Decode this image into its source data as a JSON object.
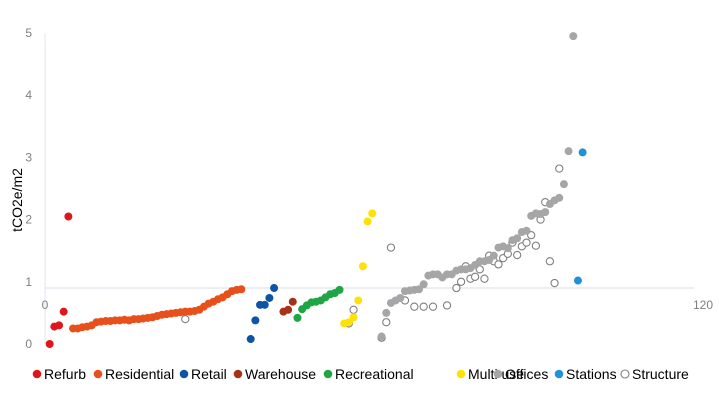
{
  "chart_data": {
    "type": "scatter",
    "title": "",
    "xlabel": "",
    "ylabel": "tCO2e/m2",
    "xlim": [
      0,
      120
    ],
    "ylim": [
      0,
      5
    ],
    "x_axis_crosses_y_at": 0.9,
    "y_ticks": [
      "0",
      "1",
      "2",
      "3",
      "4",
      "5"
    ],
    "x_tick_labels": [
      "0",
      "120"
    ],
    "grid": false,
    "legend_position": "bottom",
    "series": [
      {
        "name": "Refurb",
        "color": "#e0161d",
        "filled": true,
        "points": [
          [
            1,
            0
          ],
          [
            2,
            0.28
          ],
          [
            3,
            0.3
          ],
          [
            4,
            0.52
          ],
          [
            5,
            2.05
          ]
        ]
      },
      {
        "name": "Residential",
        "color": "#e8501b",
        "filled": true,
        "points": [
          [
            6,
            0.25
          ],
          [
            7,
            0.25
          ],
          [
            8,
            0.27
          ],
          [
            9,
            0.28
          ],
          [
            10,
            0.3
          ],
          [
            11,
            0.35
          ],
          [
            12,
            0.36
          ],
          [
            13,
            0.37
          ],
          [
            14,
            0.37
          ],
          [
            15,
            0.38
          ],
          [
            16,
            0.38
          ],
          [
            17,
            0.39
          ],
          [
            18,
            0.38
          ],
          [
            19,
            0.4
          ],
          [
            20,
            0.4
          ],
          [
            21,
            0.41
          ],
          [
            22,
            0.42
          ],
          [
            23,
            0.43
          ],
          [
            24,
            0.45
          ],
          [
            25,
            0.47
          ],
          [
            26,
            0.48
          ],
          [
            27,
            0.49
          ],
          [
            28,
            0.5
          ],
          [
            29,
            0.51
          ],
          [
            30,
            0.52
          ],
          [
            31,
            0.52
          ],
          [
            32,
            0.53
          ],
          [
            33,
            0.55
          ],
          [
            34,
            0.6
          ],
          [
            35,
            0.65
          ],
          [
            36,
            0.68
          ],
          [
            37,
            0.72
          ],
          [
            38,
            0.75
          ],
          [
            39,
            0.8
          ],
          [
            40,
            0.85
          ],
          [
            41,
            0.87
          ],
          [
            42,
            0.88
          ]
        ]
      },
      {
        "name": "Retail",
        "color": "#0d54a5",
        "filled": true,
        "points": [
          [
            44,
            0.08
          ],
          [
            45,
            0.38
          ],
          [
            46,
            0.63
          ],
          [
            47,
            0.63
          ],
          [
            48,
            0.74
          ],
          [
            49,
            0.9
          ]
        ]
      },
      {
        "name": "Warehouse",
        "color": "#a83218",
        "filled": true,
        "points": [
          [
            51,
            0.52
          ],
          [
            52,
            0.55
          ],
          [
            53,
            0.68
          ]
        ]
      },
      {
        "name": "Recreational",
        "color": "#1ea544",
        "filled": true,
        "points": [
          [
            54,
            0.42
          ],
          [
            55,
            0.56
          ],
          [
            56,
            0.62
          ],
          [
            57,
            0.67
          ],
          [
            58,
            0.68
          ],
          [
            59,
            0.7
          ],
          [
            60,
            0.75
          ],
          [
            61,
            0.8
          ],
          [
            62,
            0.82
          ],
          [
            63,
            0.87
          ]
        ]
      },
      {
        "name": "Multi use",
        "color": "#ffe10a",
        "filled": true,
        "points": [
          [
            64,
            0.33
          ],
          [
            65,
            0.35
          ],
          [
            66,
            0.43
          ],
          [
            67,
            0.7
          ],
          [
            68,
            1.25
          ],
          [
            69,
            1.97
          ],
          [
            70,
            2.1
          ]
        ]
      },
      {
        "name": "Offices",
        "color": "#a6a6a6",
        "filled": true,
        "points": [
          [
            72,
            0.12
          ],
          [
            73,
            0.5
          ],
          [
            74,
            0.66
          ],
          [
            75,
            0.7
          ],
          [
            76,
            0.74
          ],
          [
            77,
            0.85
          ],
          [
            78,
            0.86
          ],
          [
            79,
            0.87
          ],
          [
            80,
            0.88
          ],
          [
            81,
            0.96
          ],
          [
            82,
            1.1
          ],
          [
            83,
            1.12
          ],
          [
            84,
            1.12
          ],
          [
            85,
            1.07
          ],
          [
            86,
            1.12
          ],
          [
            87,
            1.12
          ],
          [
            88,
            1.18
          ],
          [
            89,
            1.2
          ],
          [
            90,
            1.2
          ],
          [
            91,
            1.22
          ],
          [
            92,
            1.27
          ],
          [
            93,
            1.33
          ],
          [
            94,
            1.33
          ],
          [
            95,
            1.35
          ],
          [
            96,
            1.42
          ],
          [
            97,
            1.55
          ],
          [
            98,
            1.57
          ],
          [
            99,
            1.54
          ],
          [
            100,
            1.67
          ],
          [
            101,
            1.7
          ],
          [
            102,
            1.8
          ],
          [
            103,
            1.82
          ],
          [
            104,
            2.06
          ],
          [
            105,
            2.1
          ],
          [
            106,
            2.09
          ],
          [
            107,
            2.12
          ],
          [
            108,
            2.25
          ],
          [
            109,
            2.31
          ],
          [
            110,
            2.35
          ],
          [
            111,
            2.57
          ],
          [
            112,
            3.1
          ],
          [
            113,
            4.95
          ]
        ]
      },
      {
        "name": "Stations",
        "color": "#1f92d9",
        "filled": true,
        "points": [
          [
            114,
            1.02
          ],
          [
            115,
            3.08
          ]
        ]
      },
      {
        "name": "Structure",
        "color": "#7f7f7f",
        "filled": false,
        "points": [
          [
            30,
            0.4
          ],
          [
            65,
            0.33
          ],
          [
            66,
            0.55
          ],
          [
            72,
            0.1
          ],
          [
            73,
            0.35
          ],
          [
            74,
            1.55
          ],
          [
            77,
            0.7
          ],
          [
            79,
            0.6
          ],
          [
            81,
            0.6
          ],
          [
            83,
            0.6
          ],
          [
            86,
            0.62
          ],
          [
            88,
            0.9
          ],
          [
            89,
            1.0
          ],
          [
            90,
            1.25
          ],
          [
            91,
            1.05
          ],
          [
            92,
            1.08
          ],
          [
            93,
            1.2
          ],
          [
            94,
            1.05
          ],
          [
            95,
            1.42
          ],
          [
            96,
            1.33
          ],
          [
            97,
            1.28
          ],
          [
            98,
            1.38
          ],
          [
            99,
            1.45
          ],
          [
            100,
            1.63
          ],
          [
            101,
            1.43
          ],
          [
            102,
            1.57
          ],
          [
            103,
            1.63
          ],
          [
            104,
            1.75
          ],
          [
            105,
            1.58
          ],
          [
            106,
            2.0
          ],
          [
            107,
            2.28
          ],
          [
            108,
            1.33
          ],
          [
            109,
            0.98
          ],
          [
            110,
            2.82
          ]
        ]
      }
    ]
  }
}
